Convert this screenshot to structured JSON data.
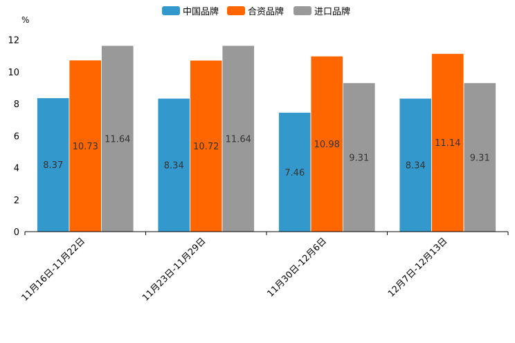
{
  "chart_data": {
    "type": "bar",
    "unit_label": "%",
    "categories": [
      "11月16日-11月22日",
      "11月23日-11月29日",
      "11月30日-12月6日",
      "12月7日-12月13日"
    ],
    "series": [
      {
        "name": "中国品牌",
        "color": "#3399cc",
        "values": [
          8.37,
          8.34,
          7.46,
          8.34
        ]
      },
      {
        "name": "合资品牌",
        "color": "#ff6600",
        "values": [
          10.73,
          10.72,
          10.98,
          11.14
        ]
      },
      {
        "name": "进口品牌",
        "color": "#999999",
        "values": [
          11.64,
          11.64,
          9.31,
          9.31
        ]
      }
    ],
    "y_ticks": [
      0,
      2,
      4,
      6,
      8,
      10,
      12
    ],
    "ylim": [
      0,
      12.5
    ],
    "legend_position": "top-center",
    "grid": false
  }
}
